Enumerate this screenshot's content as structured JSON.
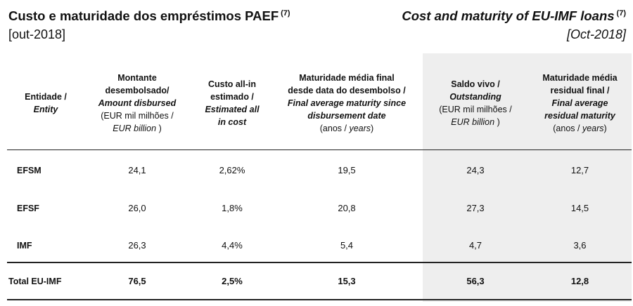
{
  "header": {
    "title_pt": "Custo e maturidade dos empréstimos PAEF",
    "title_pt_note": "(7)",
    "date_pt": "[out-2018]",
    "title_en": "Cost and maturity of EU-IMF loans",
    "title_en_note": "(7)",
    "date_en": "[Oct-2018]"
  },
  "columns": {
    "entity": {
      "pt": "Entidade /",
      "en": "Entity"
    },
    "amount": {
      "l1": "Montante",
      "l2": "desembolsado/",
      "l3": "Amount disbursed",
      "l4": "(EUR mil milhões /",
      "l5": "EUR billion",
      "l5_close": ")"
    },
    "cost": {
      "l1": "Custo all-in",
      "l2": "estimado /",
      "l3": "Estimated all",
      "l4": "in cost"
    },
    "final_maturity": {
      "l1": "Maturidade média final",
      "l2": "desde data do desembolso /",
      "l3": "Final average maturity since",
      "l4": "disbursement date",
      "l5_open": "(anos /",
      "l5_it": "years",
      "l5_close": ")"
    },
    "outstanding": {
      "l1": "Saldo vivo /",
      "l2": "Outstanding",
      "l3": "(EUR mil milhões /",
      "l4": "EUR billion",
      "l4_close": ")"
    },
    "residual": {
      "l1": "Maturidade média",
      "l2": "residual final /",
      "l3": "Final average",
      "l4": "residual maturity",
      "l5_open": "(anos /",
      "l5_it": "years",
      "l5_close": ")"
    }
  },
  "rows": [
    {
      "entity": "EFSM",
      "amount": "24,1",
      "cost": "2,62%",
      "final_maturity": "19,5",
      "outstanding": "24,3",
      "residual": "12,7"
    },
    {
      "entity": "EFSF",
      "amount": "26,0",
      "cost": "1,8%",
      "final_maturity": "20,8",
      "outstanding": "27,3",
      "residual": "14,5"
    },
    {
      "entity": "IMF",
      "amount": "26,3",
      "cost": "4,4%",
      "final_maturity": "5,4",
      "outstanding": "4,7",
      "residual": "3,6"
    }
  ],
  "total": {
    "entity": "Total EU-IMF",
    "amount": "76,5",
    "cost": "2,5%",
    "final_maturity": "15,3",
    "outstanding": "56,3",
    "residual": "12,8"
  },
  "colors": {
    "shade": "#eeeeee",
    "rule": "#222222"
  }
}
